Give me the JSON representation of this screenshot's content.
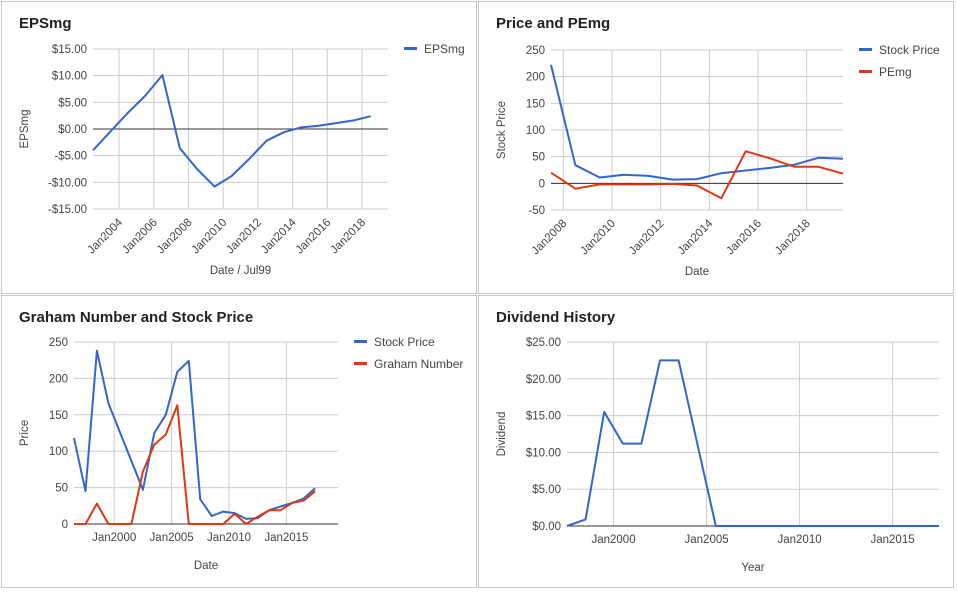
{
  "chart_data": [
    {
      "type": "line",
      "title": "EPSmg",
      "xlabel": "Date / Jul99",
      "ylabel": "EPSmg",
      "ylim": [
        -15,
        15
      ],
      "yticks": [
        15,
        10,
        5,
        0,
        -5,
        -10,
        -15
      ],
      "ytick_labels": [
        "$15.00",
        "$10.00",
        "$5.00",
        "$0.00",
        "-$5.00",
        "-$10.00",
        "-$15.00"
      ],
      "xlim": [
        "2002-07-01",
        "2019-07-01"
      ],
      "xticks": [
        "2004-01-01",
        "2006-01-01",
        "2008-01-01",
        "2010-01-01",
        "2012-01-01",
        "2014-01-01",
        "2016-01-01",
        "2018-01-01"
      ],
      "xtick_labels": [
        "Jan2004",
        "Jan2006",
        "Jan2008",
        "Jan2010",
        "Jan2012",
        "Jan2014",
        "Jan2016",
        "Jan2018"
      ],
      "xtick_rotation": -45,
      "grid": true,
      "zero_line": true,
      "legend_position": "top-right",
      "series": [
        {
          "name": "EPSmg",
          "color": "#3366cc",
          "points": [
            [
              "2002-07-01",
              -4.0
            ],
            [
              "2003-07-01",
              -0.5
            ],
            [
              "2004-07-01",
              3.0
            ],
            [
              "2005-07-01",
              6.2
            ],
            [
              "2006-07-01",
              10.1
            ],
            [
              "2007-07-01",
              -3.6
            ],
            [
              "2008-07-01",
              -7.5
            ],
            [
              "2009-07-01",
              -10.8
            ],
            [
              "2010-07-01",
              -8.8
            ],
            [
              "2011-07-01",
              -5.6
            ],
            [
              "2012-07-01",
              -2.2
            ],
            [
              "2013-07-01",
              -0.6
            ],
            [
              "2014-07-01",
              0.3
            ],
            [
              "2015-07-01",
              0.6
            ],
            [
              "2016-07-01",
              1.1
            ],
            [
              "2017-07-01",
              1.6
            ],
            [
              "2018-07-01",
              2.4
            ]
          ]
        }
      ]
    },
    {
      "type": "line",
      "title": "Price and PEmg",
      "xlabel": "Date",
      "ylabel": "Stock Price",
      "ylim": [
        -50,
        250
      ],
      "yticks": [
        250,
        200,
        150,
        100,
        50,
        0,
        -50
      ],
      "ytick_labels": [
        "250",
        "200",
        "150",
        "100",
        "50",
        "0",
        "-50"
      ],
      "xlim": [
        "2007-07-01",
        "2019-07-01"
      ],
      "xticks": [
        "2008-01-01",
        "2010-01-01",
        "2012-01-01",
        "2014-01-01",
        "2016-01-01",
        "2018-01-01"
      ],
      "xtick_labels": [
        "Jan2008",
        "Jan2010",
        "Jan2012",
        "Jan2014",
        "Jan2016",
        "Jan2018"
      ],
      "xtick_rotation": -45,
      "grid": true,
      "zero_line": true,
      "legend_position": "top-right",
      "series": [
        {
          "name": "Stock Price",
          "color": "#3366cc",
          "points": [
            [
              "2007-07-01",
              222
            ],
            [
              "2008-07-01",
              34
            ],
            [
              "2009-07-01",
              11
            ],
            [
              "2010-07-01",
              16
            ],
            [
              "2011-07-01",
              14
            ],
            [
              "2012-07-01",
              7
            ],
            [
              "2013-07-01",
              8
            ],
            [
              "2014-07-01",
              19
            ],
            [
              "2015-07-01",
              24
            ],
            [
              "2016-07-01",
              29
            ],
            [
              "2017-07-01",
              35
            ],
            [
              "2018-07-01",
              48
            ],
            [
              "2019-07-01",
              46
            ]
          ]
        },
        {
          "name": "PEmg",
          "color": "#dc3912",
          "points": [
            [
              "2007-07-01",
              20
            ],
            [
              "2008-07-01",
              -10
            ],
            [
              "2009-07-01",
              -2
            ],
            [
              "2010-07-01",
              -2
            ],
            [
              "2011-07-01",
              -2
            ],
            [
              "2012-07-01",
              -1
            ],
            [
              "2013-07-01",
              -4
            ],
            [
              "2014-07-01",
              -28
            ],
            [
              "2015-07-01",
              60
            ],
            [
              "2016-07-01",
              47
            ],
            [
              "2017-07-01",
              31
            ],
            [
              "2018-07-01",
              31
            ],
            [
              "2019-07-01",
              18
            ]
          ]
        }
      ]
    },
    {
      "type": "line",
      "title": "Graham Number and Stock Price",
      "xlabel": "Date",
      "ylabel": "Price",
      "ylim": [
        0,
        250
      ],
      "yticks": [
        250,
        200,
        150,
        100,
        50,
        0
      ],
      "ytick_labels": [
        "250",
        "200",
        "150",
        "100",
        "50",
        "0"
      ],
      "xlim": [
        "1996-07-01",
        "2019-07-01"
      ],
      "xticks": [
        "2000-01-01",
        "2005-01-01",
        "2010-01-01",
        "2015-01-01"
      ],
      "xtick_labels": [
        "Jan2000",
        "Jan2005",
        "Jan2010",
        "Jan2015"
      ],
      "xtick_rotation": 0,
      "grid": true,
      "legend_position": "top-right",
      "series": [
        {
          "name": "Stock Price",
          "color": "#3366cc",
          "points": [
            [
              "1996-07-01",
              118
            ],
            [
              "1997-07-01",
              45
            ],
            [
              "1998-07-01",
              238
            ],
            [
              "1999-07-01",
              166
            ],
            [
              "2002-07-01",
              47
            ],
            [
              "2003-07-01",
              125
            ],
            [
              "2004-07-01",
              150
            ],
            [
              "2005-07-01",
              209
            ],
            [
              "2006-07-01",
              224
            ],
            [
              "2007-07-01",
              34
            ],
            [
              "2008-07-01",
              11
            ],
            [
              "2009-07-01",
              17
            ],
            [
              "2010-07-01",
              15
            ],
            [
              "2011-07-01",
              7
            ],
            [
              "2012-07-01",
              8
            ],
            [
              "2013-07-01",
              19
            ],
            [
              "2014-07-01",
              24
            ],
            [
              "2015-07-01",
              29
            ],
            [
              "2016-07-01",
              35
            ],
            [
              "2017-07-01",
              49
            ]
          ]
        },
        {
          "name": "Graham Number",
          "color": "#dc3912",
          "points": [
            [
              "1996-07-01",
              0
            ],
            [
              "1997-07-01",
              0
            ],
            [
              "1998-07-01",
              28
            ],
            [
              "1999-07-01",
              0
            ],
            [
              "2000-07-01",
              0
            ],
            [
              "2001-07-01",
              0
            ],
            [
              "2002-07-01",
              72
            ],
            [
              "2003-07-01",
              109
            ],
            [
              "2004-07-01",
              123
            ],
            [
              "2005-07-01",
              163
            ],
            [
              "2006-07-01",
              0
            ],
            [
              "2007-07-01",
              0
            ],
            [
              "2008-07-01",
              0
            ],
            [
              "2009-07-01",
              0
            ],
            [
              "2010-07-01",
              14
            ],
            [
              "2011-07-01",
              0
            ],
            [
              "2012-07-01",
              10
            ],
            [
              "2013-07-01",
              19
            ],
            [
              "2014-07-01",
              19
            ],
            [
              "2015-07-01",
              29
            ],
            [
              "2016-07-01",
              32
            ],
            [
              "2017-07-01",
              45
            ]
          ]
        }
      ]
    },
    {
      "type": "line",
      "title": "Dividend History",
      "xlabel": "Year",
      "ylabel": "Dividend",
      "ylim": [
        0,
        25
      ],
      "yticks": [
        25,
        20,
        15,
        10,
        5,
        0
      ],
      "ytick_labels": [
        "$25.00",
        "$20.00",
        "$15.00",
        "$10.00",
        "$5.00",
        "$0.00"
      ],
      "xlim": [
        "1997-07-01",
        "2017-07-01"
      ],
      "xticks": [
        "2000-01-01",
        "2005-01-01",
        "2010-01-01",
        "2015-01-01"
      ],
      "xtick_labels": [
        "Jan2000",
        "Jan2005",
        "Jan2010",
        "Jan2015"
      ],
      "xtick_rotation": 0,
      "grid": true,
      "legend_position": "none",
      "series": [
        {
          "name": "",
          "color": "#3366cc",
          "points": [
            [
              "1997-07-01",
              0
            ],
            [
              "1998-07-01",
              0.9
            ],
            [
              "1999-07-01",
              15.5
            ],
            [
              "2000-07-01",
              11.2
            ],
            [
              "2001-07-01",
              11.2
            ],
            [
              "2002-07-01",
              22.5
            ],
            [
              "2003-07-01",
              22.5
            ],
            [
              "2005-07-01",
              0
            ],
            [
              "2017-07-01",
              0
            ]
          ]
        }
      ]
    }
  ]
}
